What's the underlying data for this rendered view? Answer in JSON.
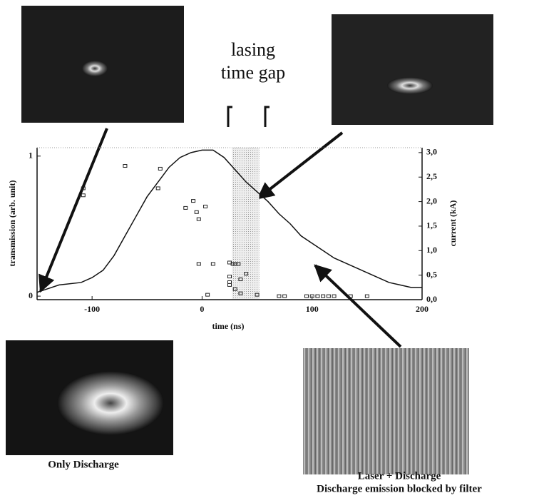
{
  "chart_data": {
    "type": "scatter",
    "xlabel": "time (ns)",
    "ylabel": "transmission (arb. unit)",
    "y2label": "current (kA)",
    "xlim": [
      -150,
      200
    ],
    "xticks": [
      -100,
      0,
      100,
      200
    ],
    "ylim": [
      -0.025,
      1.06
    ],
    "yticks": [
      0,
      1
    ],
    "y2lim": [
      0,
      3.1
    ],
    "y2ticks": [
      {
        "value": 0,
        "label": "0,0"
      },
      {
        "value": 0.5,
        "label": "0,5"
      },
      {
        "value": 1,
        "label": "1,0"
      },
      {
        "value": 1.5,
        "label": "1,5"
      },
      {
        "value": 2,
        "label": "2,0"
      },
      {
        "value": 2.5,
        "label": "2,5"
      },
      {
        "value": 3,
        "label": "3,0"
      }
    ],
    "shaded_x": [
      27,
      52
    ],
    "series": [
      {
        "type": "scatter",
        "color": "#222",
        "x": [
          -108,
          -108,
          -70,
          -38,
          -40,
          -15,
          -8,
          -5,
          -3,
          3,
          -3,
          10,
          5,
          25,
          25,
          25,
          25,
          28,
          30,
          33,
          30,
          35,
          40,
          35,
          50,
          70,
          75,
          95,
          100,
          105,
          110,
          115,
          120,
          135,
          150
        ],
        "values": [
          0.77,
          0.72,
          0.93,
          0.91,
          0.77,
          0.63,
          0.68,
          0.6,
          0.55,
          0.64,
          0.23,
          0.23,
          0.01,
          0.24,
          0.14,
          0.1,
          0.08,
          0.23,
          0.23,
          0.23,
          0.05,
          0.12,
          0.16,
          0.02,
          0.01,
          0,
          0,
          0,
          0,
          0,
          0,
          0,
          0,
          0,
          0
        ]
      },
      {
        "type": "line",
        "axis": "y2",
        "color": "#111",
        "x": [
          -150,
          -130,
          -110,
          -100,
          -90,
          -80,
          -70,
          -60,
          -50,
          -40,
          -30,
          -20,
          -10,
          0,
          10,
          20,
          30,
          40,
          50,
          60,
          70,
          80,
          90,
          100,
          110,
          120,
          130,
          140,
          150,
          160,
          170,
          180,
          190,
          200
        ],
        "values": [
          0.15,
          0.3,
          0.35,
          0.45,
          0.6,
          0.9,
          1.3,
          1.7,
          2.1,
          2.4,
          2.7,
          2.9,
          3.0,
          3.05,
          3.05,
          2.9,
          2.65,
          2.4,
          2.2,
          2.0,
          1.75,
          1.55,
          1.3,
          1.15,
          1.0,
          0.85,
          0.75,
          0.65,
          0.55,
          0.45,
          0.35,
          0.3,
          0.25,
          0.25
        ]
      }
    ],
    "annotations": [
      "lasing",
      "time gap",
      "Only Discharge",
      "Laser + Discharge",
      "Discharge emission blocked by filter"
    ]
  }
}
